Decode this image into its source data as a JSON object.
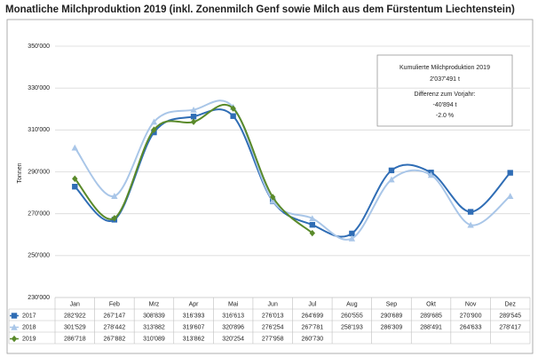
{
  "chart_data": {
    "type": "line",
    "title": "Monatliche Milchproduktion 2019 (inkl. Zonenmilch Genf sowie Milch aus dem Fürstentum Liechtenstein)",
    "y_label": "Tonnen",
    "categories": [
      "Jan",
      "Feb",
      "Mrz",
      "Apr",
      "Mai",
      "Jun",
      "Jul",
      "Aug",
      "Sep",
      "Okt",
      "Nov",
      "Dez"
    ],
    "series": [
      {
        "name": "2017",
        "color": "#2f6db5",
        "marker": "square",
        "values": [
          282922,
          267147,
          308839,
          316393,
          316613,
          276013,
          264699,
          260555,
          290689,
          289685,
          270900,
          289545
        ],
        "value_labels": [
          "282'922",
          "267'147",
          "308'839",
          "316'393",
          "316'613",
          "276'013",
          "264'699",
          "260'555",
          "290'689",
          "289'685",
          "270'900",
          "289'545"
        ]
      },
      {
        "name": "2018",
        "color": "#a9c6e8",
        "marker": "triangle",
        "values": [
          301529,
          278442,
          313882,
          319607,
          320896,
          276254,
          267781,
          258193,
          286309,
          288491,
          264633,
          278417
        ],
        "value_labels": [
          "301'529",
          "278'442",
          "313'882",
          "319'607",
          "320'896",
          "276'254",
          "267'781",
          "258'193",
          "286'309",
          "288'491",
          "264'633",
          "278'417"
        ]
      },
      {
        "name": "2019",
        "color": "#5a8a2a",
        "marker": "diamond",
        "values": [
          286718,
          267882,
          310089,
          313862,
          320254,
          277958,
          260730,
          null,
          null,
          null,
          null,
          null
        ],
        "value_labels": [
          "286'718",
          "267'882",
          "310'089",
          "313'862",
          "320'254",
          "277'958",
          "260'730",
          null,
          null,
          null,
          null,
          null
        ]
      }
    ],
    "ylim": [
      230000,
      350000
    ],
    "yticks": [
      {
        "value": 230000,
        "label": "230'000"
      },
      {
        "value": 250000,
        "label": "250'000"
      },
      {
        "value": 270000,
        "label": "270'000"
      },
      {
        "value": 290000,
        "label": "290'000"
      },
      {
        "value": 310000,
        "label": "310'000"
      },
      {
        "value": 330000,
        "label": "330'000"
      },
      {
        "value": 350000,
        "label": "350'000"
      }
    ],
    "grid": true,
    "annotations": [
      "Kumulierte Milchproduktion 2019",
      "2'037'491 t",
      "Differenz zum Vorjahr:",
      "-40'894 t",
      "-2.0 %"
    ]
  }
}
